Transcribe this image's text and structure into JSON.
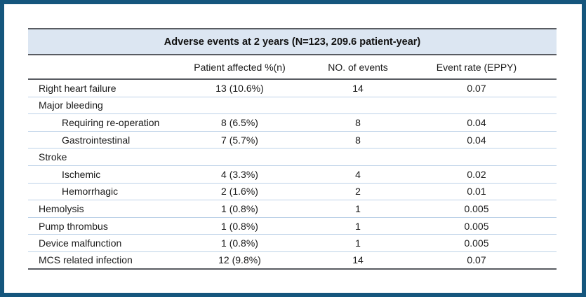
{
  "colors": {
    "frame_border": "#15567d",
    "title_background": "#dce6f2",
    "heavy_rule": "#595c62",
    "row_separator": "#bdd2e8",
    "text": "#1a1a1a"
  },
  "table": {
    "title": "Adverse events at 2 years (N=123, 209.6 patient-year)",
    "columns": {
      "label": "",
      "patient_affected": "Patient affected %(n)",
      "no_of_events": "NO. of events",
      "event_rate": "Event rate (EPPY)"
    },
    "rows": [
      {
        "label": "Right heart failure",
        "indent": false,
        "patient_affected": "13 (10.6%)",
        "no_of_events": "14",
        "event_rate": "0.07"
      },
      {
        "label": "Major bleeding",
        "indent": false,
        "patient_affected": "",
        "no_of_events": "",
        "event_rate": ""
      },
      {
        "label": "Requiring re-operation",
        "indent": true,
        "patient_affected": "8 (6.5%)",
        "no_of_events": "8",
        "event_rate": "0.04"
      },
      {
        "label": "Gastrointestinal",
        "indent": true,
        "patient_affected": "7 (5.7%)",
        "no_of_events": "8",
        "event_rate": "0.04"
      },
      {
        "label": "Stroke",
        "indent": false,
        "patient_affected": "",
        "no_of_events": "",
        "event_rate": ""
      },
      {
        "label": "Ischemic",
        "indent": true,
        "patient_affected": "4 (3.3%)",
        "no_of_events": "4",
        "event_rate": "0.02"
      },
      {
        "label": "Hemorrhagic",
        "indent": true,
        "patient_affected": "2 (1.6%)",
        "no_of_events": "2",
        "event_rate": "0.01"
      },
      {
        "label": "Hemolysis",
        "indent": false,
        "patient_affected": "1 (0.8%)",
        "no_of_events": "1",
        "event_rate": "0.005"
      },
      {
        "label": "Pump thrombus",
        "indent": false,
        "patient_affected": "1 (0.8%)",
        "no_of_events": "1",
        "event_rate": "0.005"
      },
      {
        "label": "Device malfunction",
        "indent": false,
        "patient_affected": "1 (0.8%)",
        "no_of_events": "1",
        "event_rate": "0.005"
      },
      {
        "label": "MCS related infection",
        "indent": false,
        "patient_affected": "12 (9.8%)",
        "no_of_events": "14",
        "event_rate": "0.07"
      }
    ]
  }
}
